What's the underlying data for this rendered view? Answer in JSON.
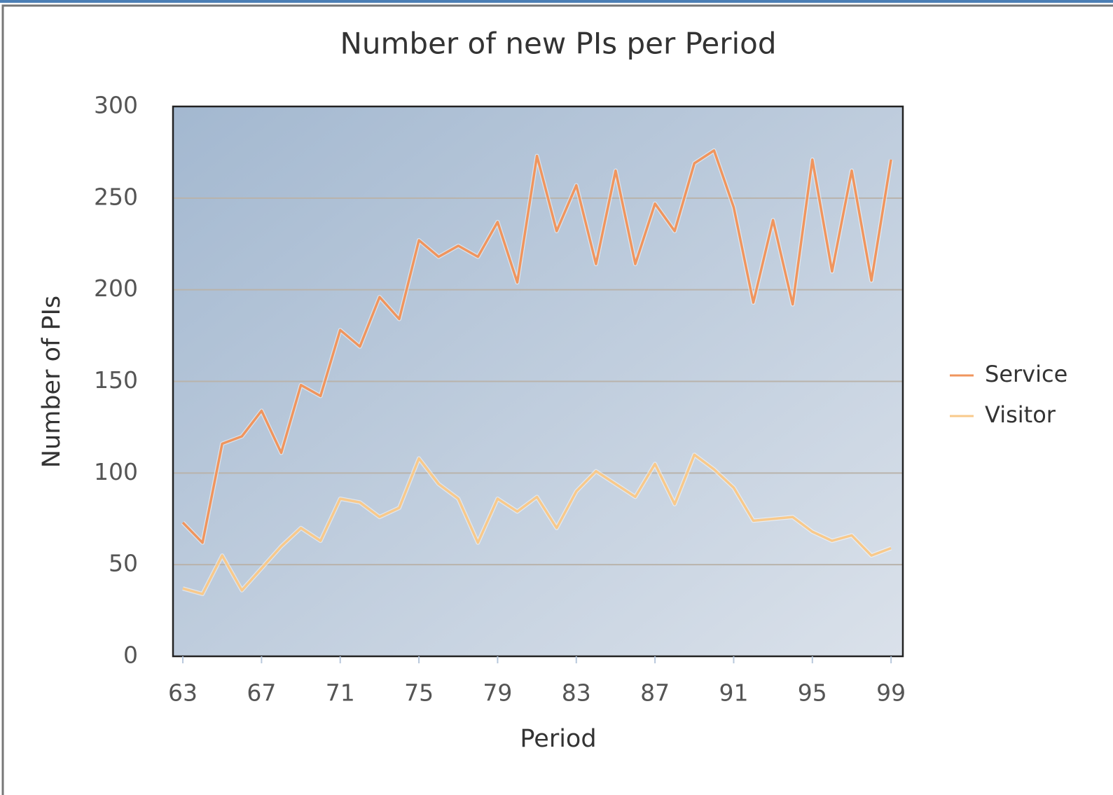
{
  "chart_data": {
    "type": "line",
    "title": "Number of new PIs per Period",
    "x_label": "Period",
    "y_label": "Number of PIs",
    "x": [
      63,
      64,
      65,
      66,
      67,
      68,
      69,
      70,
      71,
      72,
      73,
      74,
      75,
      76,
      77,
      78,
      79,
      80,
      81,
      82,
      83,
      84,
      85,
      86,
      87,
      88,
      89,
      90,
      91,
      92,
      93,
      94,
      95,
      96,
      97,
      98,
      99
    ],
    "series": [
      {
        "name": "Service",
        "color": "#f0955e",
        "values": [
          73,
          62,
          116,
          120,
          134,
          111,
          148,
          142,
          178,
          169,
          196,
          184,
          227,
          218,
          224,
          218,
          237,
          204,
          273,
          232,
          257,
          214,
          265,
          214,
          247,
          232,
          269,
          276,
          245,
          193,
          238,
          192,
          271,
          210,
          265,
          205,
          271
        ]
      },
      {
        "name": "Visitor",
        "color": "#f8c98b",
        "values": [
          37,
          34,
          55,
          36,
          48,
          60,
          70,
          63,
          86,
          84,
          76,
          81,
          108,
          94,
          86,
          62,
          86,
          79,
          87,
          70,
          90,
          101,
          94,
          87,
          105,
          83,
          110,
          102,
          92,
          74,
          75,
          76,
          68,
          63,
          66,
          55,
          59
        ]
      }
    ],
    "xlim": [
      62.5,
      99.6
    ],
    "xticks": [
      63,
      67,
      71,
      75,
      79,
      83,
      87,
      91,
      95,
      99
    ],
    "ylim": [
      0,
      300
    ],
    "yticks": [
      0,
      50,
      100,
      150,
      200,
      250,
      300
    ],
    "grid": true,
    "legend": "right"
  }
}
